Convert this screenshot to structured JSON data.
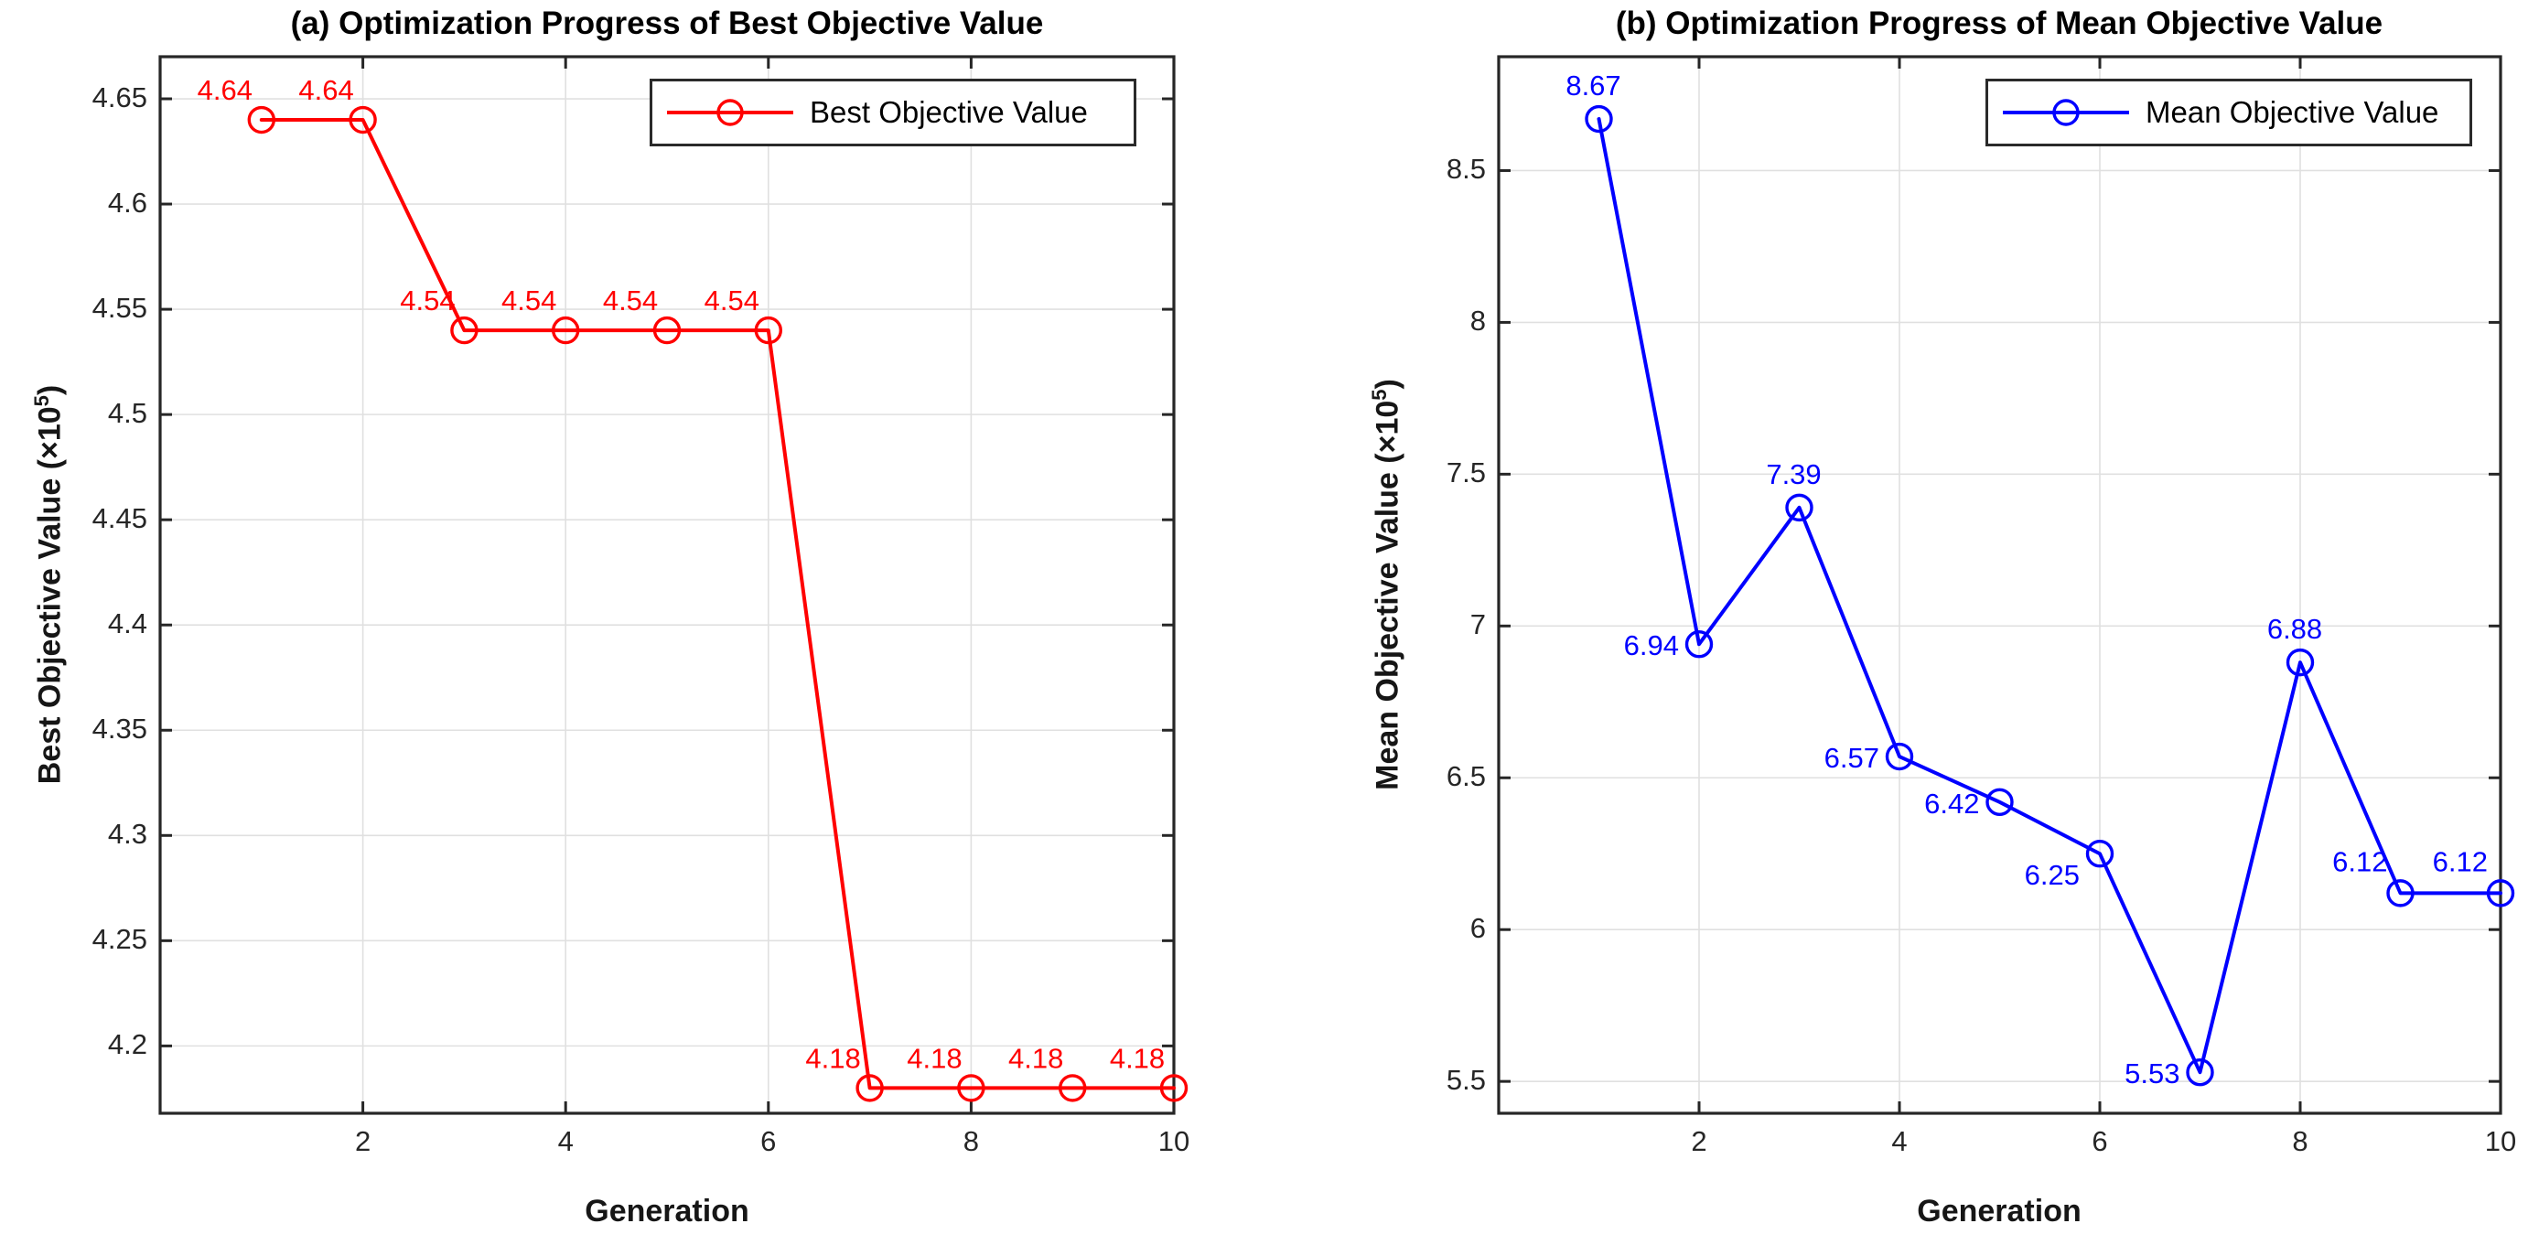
{
  "figure_background": "#FFFFFF",
  "grid_color": "#E0E0E0",
  "axis_color": "#262626",
  "chart_data": [
    {
      "type": "line",
      "panel": "a",
      "title": "(a) Optimization Progress of Best Objective Value",
      "xlabel": "Generation",
      "ylabel": "Best Objective Value (×10⁵)",
      "legend_label": "Best Objective Value",
      "legend_position": "top-right",
      "line_color": "#FF0000",
      "marker": "open-circle",
      "grid": true,
      "x": [
        1,
        2,
        3,
        4,
        5,
        6,
        7,
        8,
        9,
        10
      ],
      "y": [
        4.64,
        4.64,
        4.54,
        4.54,
        4.54,
        4.54,
        4.18,
        4.18,
        4.18,
        4.18
      ],
      "point_labels": [
        "4.64",
        "4.64",
        "4.54",
        "4.54",
        "4.54",
        "4.54",
        "4.18",
        "4.18",
        "4.18",
        "4.18"
      ],
      "label_placements": [
        "above-left",
        "above-left",
        "above-left",
        "above-left",
        "above-left",
        "above-left",
        "above-left",
        "above-left",
        "above-left",
        "above-left"
      ],
      "x_ticks": [
        "2",
        "4",
        "6",
        "8",
        "10"
      ],
      "y_ticks": [
        "4.2",
        "4.25",
        "4.3",
        "4.35",
        "4.4",
        "4.45",
        "4.5",
        "4.55",
        "4.6",
        "4.65"
      ],
      "xlim": [
        0,
        10
      ],
      "ylim": [
        4.168,
        4.67
      ]
    },
    {
      "type": "line",
      "panel": "b",
      "title": "(b) Optimization Progress of Mean Objective Value",
      "xlabel": "Generation",
      "ylabel": "Mean Objective Value (×10⁵)",
      "legend_label": "Mean Objective Value",
      "legend_position": "top-right",
      "line_color": "#0000FF",
      "marker": "open-circle",
      "grid": true,
      "x": [
        1,
        2,
        3,
        4,
        5,
        6,
        7,
        8,
        9,
        10
      ],
      "y": [
        8.67,
        6.94,
        7.39,
        6.57,
        6.42,
        6.25,
        5.53,
        6.88,
        6.12,
        6.12
      ],
      "point_labels": [
        "8.67",
        "6.94",
        "7.39",
        "6.57",
        "6.42",
        "6.25",
        "5.53",
        "6.88",
        "6.12",
        "6.12"
      ],
      "label_placements": [
        "above",
        "left",
        "above",
        "left",
        "left",
        "below-left",
        "left",
        "above",
        "upper-left",
        "upper-left"
      ],
      "x_ticks": [
        "2",
        "4",
        "6",
        "8",
        "10"
      ],
      "y_ticks": [
        "5.5",
        "6",
        "6.5",
        "7",
        "7.5",
        "8",
        "8.5"
      ],
      "xlim": [
        0,
        10
      ],
      "ylim": [
        5.395,
        8.875
      ]
    }
  ]
}
